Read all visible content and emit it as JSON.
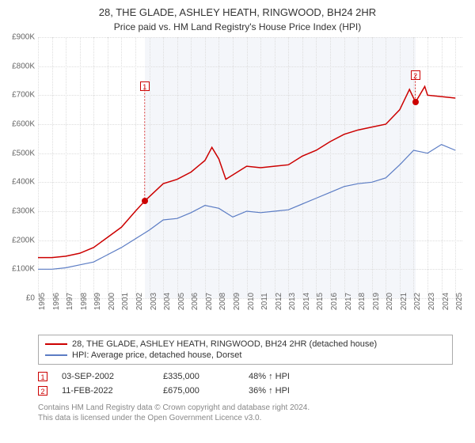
{
  "title": "28, THE GLADE, ASHLEY HEATH, RINGWOOD, BH24 2HR",
  "subtitle": "Price paid vs. HM Land Registry's House Price Index (HPI)",
  "chart": {
    "type": "line",
    "background_color": "#ffffff",
    "grid_color": "#dddddd",
    "shaded_region_color": "#f4f6fa",
    "shaded_region_start": 2002.67,
    "shaded_region_end": 2022.12,
    "xlim": [
      1995,
      2025.5
    ],
    "ylim": [
      0,
      900
    ],
    "y_unit_prefix": "£",
    "y_unit_suffix": "K",
    "yticks": [
      0,
      100,
      200,
      300,
      400,
      500,
      600,
      700,
      800,
      900
    ],
    "xticks": [
      1995,
      1996,
      1997,
      1998,
      1999,
      2000,
      2001,
      2002,
      2003,
      2004,
      2005,
      2006,
      2007,
      2008,
      2009,
      2010,
      2011,
      2012,
      2013,
      2014,
      2015,
      2016,
      2017,
      2018,
      2019,
      2020,
      2021,
      2022,
      2023,
      2024,
      2025
    ],
    "series": [
      {
        "name": "28, THE GLADE, ASHLEY HEATH, RINGWOOD, BH24 2HR (detached house)",
        "color": "#cc0000",
        "line_width": 1.5,
        "x": [
          1995,
          1996,
          1997,
          1998,
          1999,
          2000,
          2001,
          2002,
          2002.67,
          2003,
          2004,
          2005,
          2006,
          2007,
          2007.5,
          2008,
          2008.5,
          2009,
          2010,
          2011,
          2012,
          2013,
          2014,
          2015,
          2016,
          2017,
          2018,
          2019,
          2020,
          2021,
          2021.7,
          2022,
          2022.12,
          2022.8,
          2023,
          2024,
          2025
        ],
        "y": [
          140,
          140,
          145,
          155,
          175,
          210,
          245,
          300,
          335,
          350,
          395,
          410,
          435,
          475,
          520,
          480,
          410,
          425,
          455,
          450,
          455,
          460,
          490,
          510,
          540,
          565,
          580,
          590,
          600,
          650,
          720,
          690,
          675,
          730,
          700,
          695,
          690
        ]
      },
      {
        "name": "HPI: Average price, detached house, Dorset",
        "color": "#5b7cc4",
        "line_width": 1.2,
        "x": [
          1995,
          1996,
          1997,
          1998,
          1999,
          2000,
          2001,
          2002,
          2003,
          2004,
          2005,
          2006,
          2007,
          2008,
          2009,
          2010,
          2011,
          2012,
          2013,
          2014,
          2015,
          2016,
          2017,
          2018,
          2019,
          2020,
          2021,
          2022,
          2023,
          2024,
          2025
        ],
        "y": [
          100,
          100,
          105,
          115,
          125,
          150,
          175,
          205,
          235,
          270,
          275,
          295,
          320,
          310,
          280,
          300,
          295,
          300,
          305,
          325,
          345,
          365,
          385,
          395,
          400,
          415,
          460,
          510,
          500,
          530,
          510
        ]
      }
    ],
    "sale_markers": [
      {
        "n": 1,
        "x": 2002.67,
        "y": 335,
        "box_y_offset_k": 730,
        "dot_color": "#cc0000"
      },
      {
        "n": 2,
        "x": 2022.12,
        "y": 675,
        "box_y_offset_k": 770,
        "dot_color": "#cc0000"
      }
    ],
    "label_fontsize": 10,
    "title_fontsize": 13
  },
  "legend": {
    "items": [
      {
        "color": "#cc0000",
        "label": "28, THE GLADE, ASHLEY HEATH, RINGWOOD, BH24 2HR (detached house)"
      },
      {
        "color": "#5b7cc4",
        "label": "HPI: Average price, detached house, Dorset"
      }
    ]
  },
  "sales": [
    {
      "n": "1",
      "date": "03-SEP-2002",
      "price": "£335,000",
      "diff": "48% ↑ HPI"
    },
    {
      "n": "2",
      "date": "11-FEB-2022",
      "price": "£675,000",
      "diff": "36% ↑ HPI"
    }
  ],
  "footer": {
    "line1": "Contains HM Land Registry data © Crown copyright and database right 2024.",
    "line2": "This data is licensed under the Open Government Licence v3.0."
  }
}
